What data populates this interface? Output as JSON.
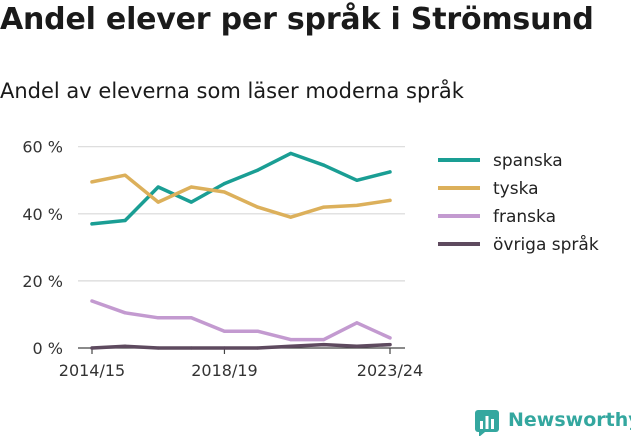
{
  "title": "Andel elever per språk i Strömsund",
  "subtitle": "Andel av eleverna som läser moderna språk",
  "brand": {
    "name": "Newsworthy",
    "icon": "bar-chart-logo-icon",
    "color": "#34a79f"
  },
  "chart_data": {
    "type": "line",
    "x": [
      "2014/15",
      "2015/16",
      "2016/17",
      "2017/18",
      "2018/19",
      "2019/20",
      "2020/21",
      "2021/22",
      "2022/23",
      "2023/24"
    ],
    "x_tick_labels": [
      "2014/15",
      "2018/19",
      "2023/24"
    ],
    "y_ticks": [
      0,
      20,
      40,
      60
    ],
    "y_tick_labels": [
      "0 %",
      "20 %",
      "40 %",
      "60 %"
    ],
    "ylim": [
      0,
      62
    ],
    "grid": "horizontal",
    "legend_position": "right",
    "series": [
      {
        "name": "spanska",
        "color": "#1a9e94",
        "values": [
          37,
          38,
          48,
          43.5,
          49,
          53,
          58,
          54.5,
          50,
          52.5
        ]
      },
      {
        "name": "tyska",
        "color": "#dcb05b",
        "values": [
          49.5,
          51.5,
          43.5,
          48,
          46.5,
          42,
          39,
          42,
          42.5,
          44
        ]
      },
      {
        "name": "franska",
        "color": "#c39ad0",
        "values": [
          14,
          10.5,
          9,
          9,
          5,
          5,
          2.5,
          2.5,
          7.5,
          3
        ]
      },
      {
        "name": "övriga språk",
        "color": "#5e4a5f",
        "values": [
          0,
          0.5,
          0,
          0,
          0,
          0,
          0.5,
          1,
          0.5,
          1
        ]
      }
    ]
  }
}
